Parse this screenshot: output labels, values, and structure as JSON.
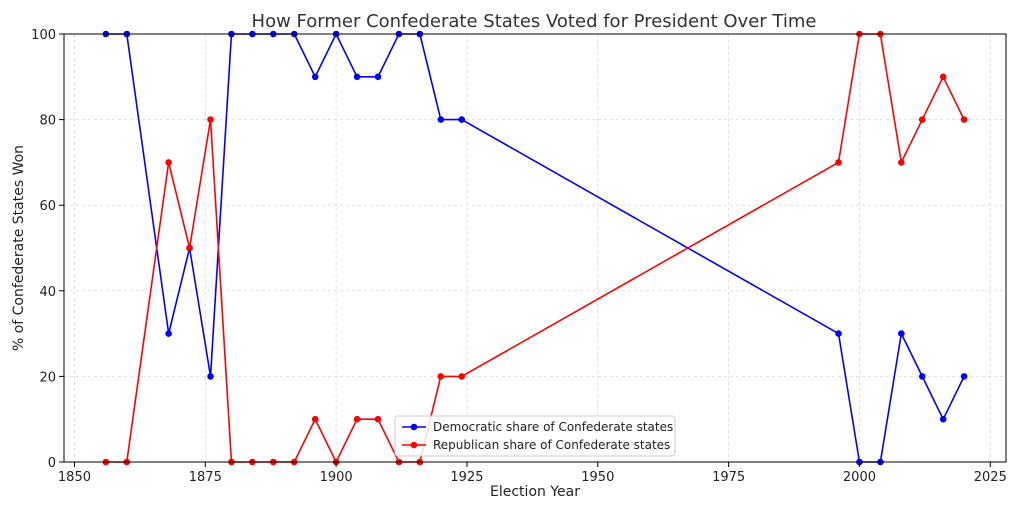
{
  "chart_data": {
    "type": "line",
    "title": "How Former Confederate States Voted for President Over Time",
    "xlabel": "Election Year",
    "ylabel": "% of Confederate States Won",
    "xlim": [
      1848,
      2028
    ],
    "ylim": [
      0,
      100
    ],
    "xticks": [
      1850,
      1875,
      1900,
      1925,
      1950,
      1975,
      2000,
      2025
    ],
    "yticks": [
      0,
      20,
      40,
      60,
      80,
      100
    ],
    "grid": true,
    "legend_position": "lower-center",
    "series": [
      {
        "name": "Democratic share of Confederate states",
        "color": "#0000ff",
        "x": [
          1856,
          1860,
          1868,
          1872,
          1876,
          1880,
          1884,
          1888,
          1892,
          1896,
          1900,
          1904,
          1908,
          1912,
          1916,
          1920,
          1924,
          1996,
          2000,
          2004,
          2008,
          2012,
          2016,
          2020
        ],
        "y": [
          100,
          100,
          30,
          50,
          20,
          100,
          100,
          100,
          100,
          90,
          100,
          90,
          90,
          100,
          100,
          80,
          80,
          30,
          0,
          0,
          30,
          20,
          10,
          20
        ]
      },
      {
        "name": "Republican share of Confederate states",
        "color": "#ff0000",
        "x": [
          1856,
          1860,
          1868,
          1872,
          1876,
          1880,
          1884,
          1888,
          1892,
          1896,
          1900,
          1904,
          1908,
          1912,
          1916,
          1920,
          1924,
          1996,
          2000,
          2004,
          2008,
          2012,
          2016,
          2020
        ],
        "y": [
          0,
          0,
          70,
          50,
          80,
          0,
          0,
          0,
          0,
          10,
          0,
          10,
          10,
          0,
          0,
          20,
          20,
          70,
          100,
          100,
          70,
          80,
          90,
          80
        ]
      }
    ]
  }
}
